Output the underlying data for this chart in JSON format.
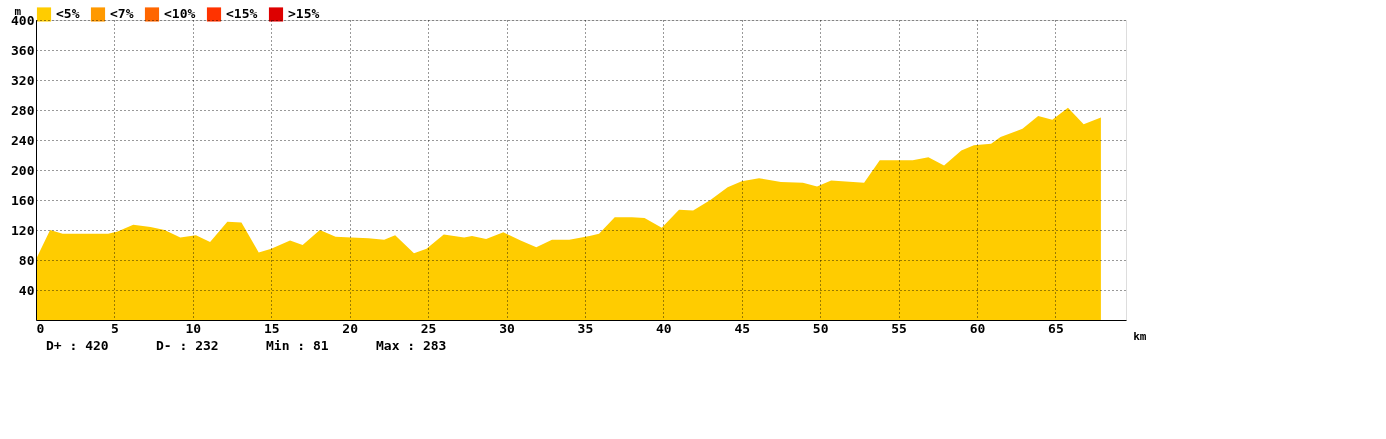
{
  "chart_data": {
    "type": "area",
    "xlabel": "km",
    "ylabel": "m",
    "x": [
      0,
      0.9,
      1.7,
      4.6,
      5.2,
      6.2,
      7.3,
      8.2,
      9.2,
      10.2,
      11.1,
      12.2,
      13.1,
      14.2,
      15.0,
      16.2,
      17.0,
      18.1,
      19.1,
      20.1,
      21.2,
      22.2,
      22.9,
      24.1,
      24.9,
      26.0,
      27.3,
      27.8,
      28.7,
      29.8,
      30.9,
      31.9,
      32.9,
      34.0,
      35.3,
      35.9,
      36.9,
      38.0,
      38.8,
      39.9,
      41.0,
      41.9,
      43.0,
      44.1,
      45.0,
      46.1,
      47.5,
      48.9,
      49.8,
      50.7,
      52.8,
      53.8,
      55.9,
      56.9,
      57.9,
      59.0,
      59.8,
      60.9,
      61.5,
      62.9,
      63.9,
      64.8,
      65.8,
      66.8,
      67.9
    ],
    "series": [
      {
        "name": "<5%",
        "color": "#ffcc00",
        "values": [
          81,
          120,
          115,
          115,
          118,
          127,
          124,
          120,
          110,
          113,
          104,
          131,
          130,
          90,
          95,
          106,
          100,
          120,
          111,
          110,
          109,
          107,
          113,
          89,
          95,
          114,
          110,
          112,
          108,
          117,
          106,
          97,
          107,
          107,
          112,
          115,
          137,
          137,
          136,
          123,
          147,
          146,
          160,
          177,
          185,
          189,
          184,
          183,
          178,
          186,
          183,
          213,
          213,
          217,
          206,
          226,
          233,
          235,
          244,
          255,
          272,
          267,
          283,
          261,
          270
        ]
      },
      {
        "name": "<7%",
        "color": "#ff9900",
        "values": [
          null,
          null,
          null,
          null,
          null,
          null,
          null,
          null,
          null,
          null,
          null,
          null,
          null,
          null,
          null,
          null,
          null,
          null,
          null,
          null,
          null,
          null,
          null,
          null,
          null,
          null,
          null,
          null,
          null,
          null,
          null,
          null,
          null,
          null,
          null,
          null,
          null,
          null,
          null,
          null,
          null,
          null,
          null,
          null,
          null,
          null,
          null,
          null,
          null,
          null,
          null,
          null,
          null,
          null,
          null,
          null,
          null,
          null,
          null,
          null,
          null,
          null,
          null,
          null,
          null
        ]
      },
      {
        "name": "<10%",
        "color": "#ff6600",
        "values": [
          null,
          null,
          null,
          null,
          null,
          null,
          null,
          null,
          null,
          null,
          null,
          null,
          null,
          null,
          null,
          null,
          null,
          null,
          null,
          null,
          null,
          null,
          null,
          null,
          null,
          null,
          null,
          null,
          null,
          null,
          null,
          null,
          null,
          null,
          null,
          null,
          null,
          null,
          null,
          null,
          null,
          null,
          null,
          null,
          null,
          null,
          null,
          null,
          null,
          null,
          null,
          null,
          null,
          null,
          null,
          null,
          null,
          null,
          null,
          null,
          null,
          null,
          null,
          null,
          null
        ]
      },
      {
        "name": "<15%",
        "color": "#ff3300",
        "values": [
          null,
          null,
          null,
          null,
          null,
          null,
          null,
          null,
          null,
          null,
          null,
          null,
          null,
          null,
          null,
          null,
          null,
          null,
          null,
          null,
          null,
          null,
          null,
          null,
          null,
          null,
          null,
          null,
          null,
          null,
          null,
          null,
          null,
          null,
          null,
          null,
          null,
          null,
          null,
          null,
          null,
          null,
          null,
          null,
          null,
          null,
          null,
          null,
          null,
          null,
          null,
          null,
          null,
          null,
          null,
          null,
          null,
          null,
          null,
          null,
          null,
          null,
          null,
          null,
          null
        ]
      },
      {
        "name": ">15%",
        "color": "#dd0000",
        "values": [
          null,
          null,
          null,
          null,
          null,
          null,
          null,
          null,
          null,
          null,
          null,
          null,
          null,
          null,
          null,
          null,
          null,
          null,
          null,
          null,
          null,
          null,
          null,
          null,
          null,
          null,
          null,
          null,
          null,
          null,
          null,
          null,
          null,
          null,
          null,
          null,
          null,
          null,
          null,
          null,
          null,
          null,
          null,
          null,
          null,
          null,
          null,
          null,
          null,
          null,
          null,
          null,
          null,
          null,
          null,
          null,
          null,
          null,
          null,
          null,
          null,
          null,
          null,
          null,
          null
        ]
      }
    ],
    "xlim": [
      0,
      69.5
    ],
    "xticks": [
      0,
      5,
      10,
      15,
      20,
      25,
      30,
      35,
      40,
      45,
      50,
      55,
      60,
      65
    ],
    "ylim": [
      0,
      400
    ],
    "yticks": [
      40,
      80,
      120,
      160,
      200,
      240,
      280,
      320,
      360,
      400
    ],
    "grid": true,
    "line_style": "dotted",
    "legend": "top",
    "annotations": [
      "D+ : 420",
      "D- : 232",
      "Min : 81",
      "Max : 283"
    ]
  }
}
